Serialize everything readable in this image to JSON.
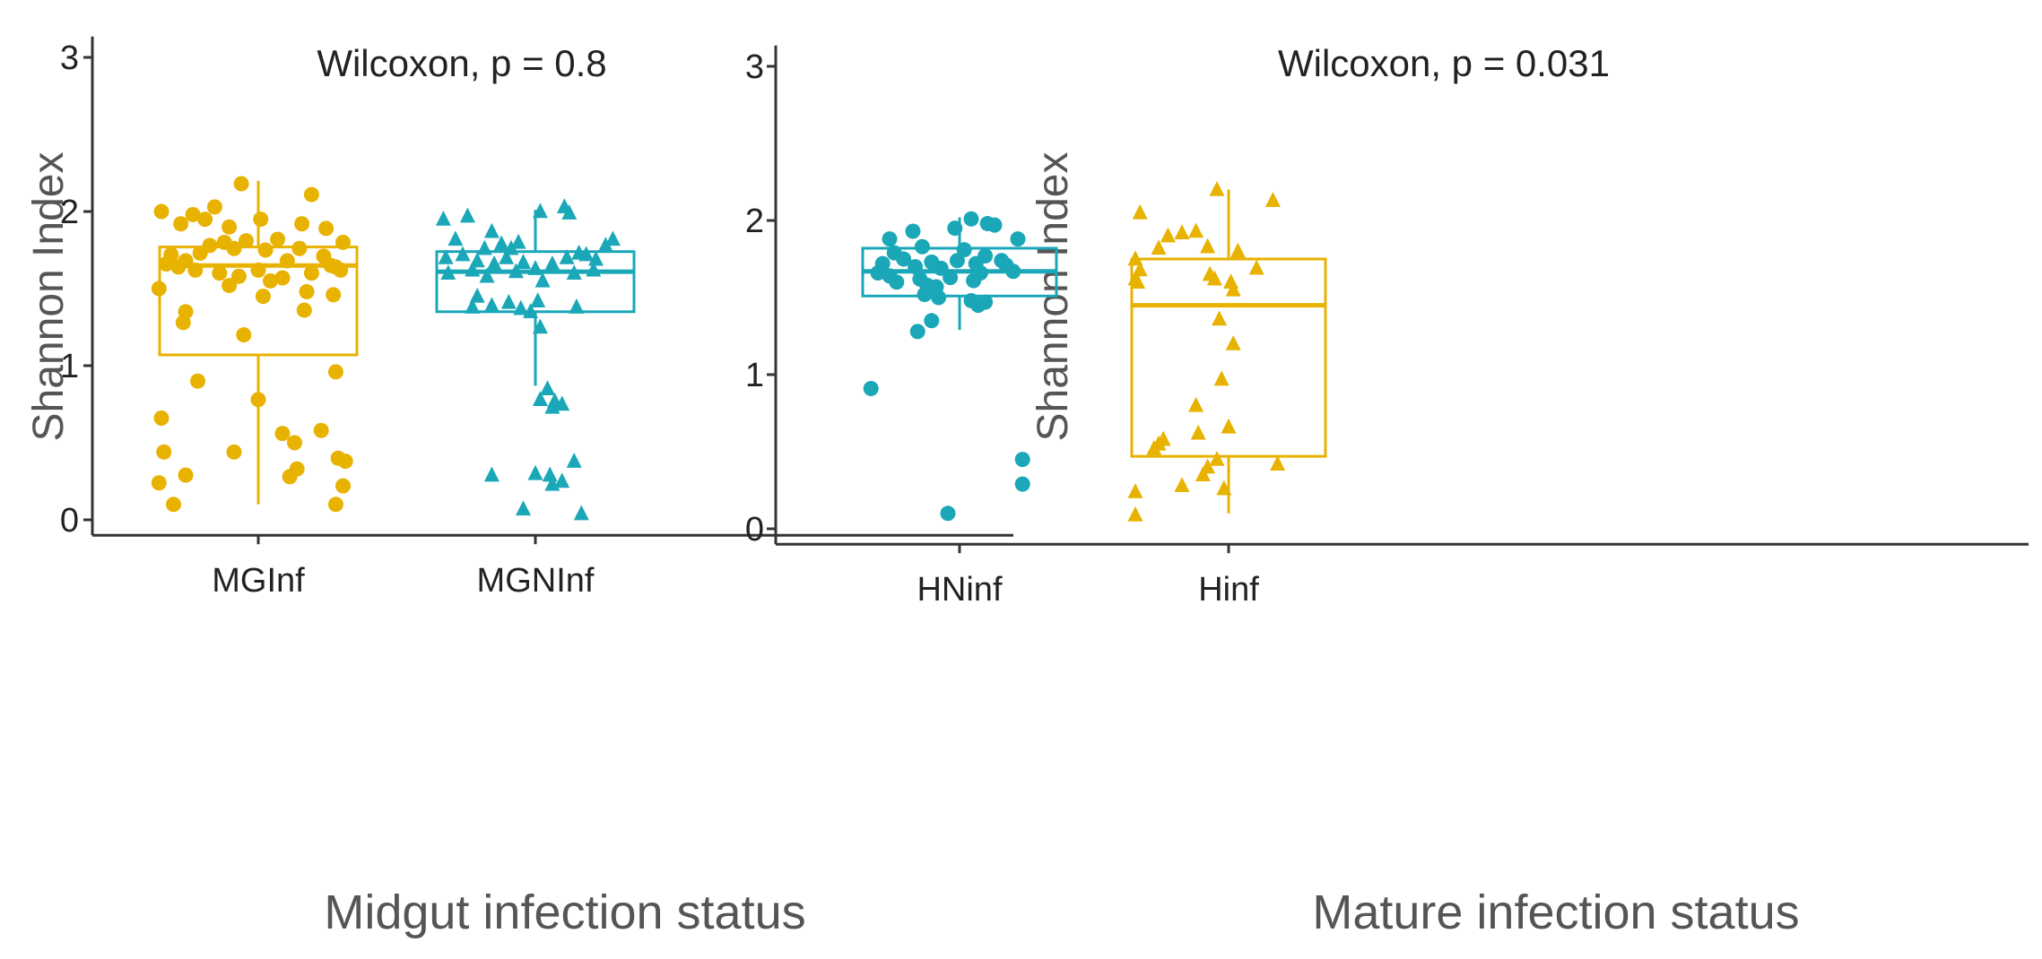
{
  "colors": {
    "gold": "#E8B200",
    "teal": "#1AA7B8",
    "axis": "#333333",
    "text": "#222222",
    "label": "#555555"
  },
  "chart_data": [
    {
      "type": "box",
      "title": "",
      "annotation": "Wilcoxon, p = 0.8",
      "xlabel": "Midgut infection status",
      "ylabel": "Shannon Index",
      "ylim": [
        -0.1,
        3.1
      ],
      "yticks": [
        "0",
        "1",
        "2",
        "3"
      ],
      "categories": [
        "MGInf",
        "MGNInf"
      ],
      "series": [
        {
          "name": "MGInf",
          "color_key": "gold",
          "marker": "circle",
          "box": {
            "min": 0.1,
            "q1": 1.07,
            "median": 1.65,
            "q3": 1.77,
            "max": 2.2
          },
          "points": [
            {
              "x": -0.4,
              "y": 2.0
            },
            {
              "x": -0.32,
              "y": 1.92
            },
            {
              "x": -0.27,
              "y": 1.98
            },
            {
              "x": -0.22,
              "y": 1.95
            },
            {
              "x": -0.18,
              "y": 2.03
            },
            {
              "x": -0.12,
              "y": 1.9
            },
            {
              "x": -0.07,
              "y": 2.18
            },
            {
              "x": 0.01,
              "y": 1.95
            },
            {
              "x": 0.18,
              "y": 1.92
            },
            {
              "x": 0.22,
              "y": 2.11
            },
            {
              "x": 0.28,
              "y": 1.89
            },
            {
              "x": 0.35,
              "y": 1.8
            },
            {
              "x": -0.36,
              "y": 1.72
            },
            {
              "x": -0.3,
              "y": 1.68
            },
            {
              "x": -0.24,
              "y": 1.73
            },
            {
              "x": -0.2,
              "y": 1.78
            },
            {
              "x": -0.14,
              "y": 1.8
            },
            {
              "x": -0.1,
              "y": 1.76
            },
            {
              "x": -0.05,
              "y": 1.81
            },
            {
              "x": 0.03,
              "y": 1.75
            },
            {
              "x": 0.08,
              "y": 1.82
            },
            {
              "x": 0.12,
              "y": 1.68
            },
            {
              "x": 0.17,
              "y": 1.76
            },
            {
              "x": 0.27,
              "y": 1.71
            },
            {
              "x": 0.3,
              "y": 1.65
            },
            {
              "x": 0.34,
              "y": 1.62
            },
            {
              "x": -0.38,
              "y": 1.66
            },
            {
              "x": -0.33,
              "y": 1.64
            },
            {
              "x": -0.26,
              "y": 1.62
            },
            {
              "x": -0.16,
              "y": 1.6
            },
            {
              "x": -0.08,
              "y": 1.58
            },
            {
              "x": 0.0,
              "y": 1.62
            },
            {
              "x": 0.05,
              "y": 1.55
            },
            {
              "x": 0.1,
              "y": 1.57
            },
            {
              "x": 0.22,
              "y": 1.6
            },
            {
              "x": 0.32,
              "y": 1.64
            },
            {
              "x": -0.41,
              "y": 1.5
            },
            {
              "x": -0.12,
              "y": 1.52
            },
            {
              "x": 0.02,
              "y": 1.45
            },
            {
              "x": 0.2,
              "y": 1.48
            },
            {
              "x": 0.31,
              "y": 1.46
            },
            {
              "x": -0.3,
              "y": 1.35
            },
            {
              "x": -0.31,
              "y": 1.28
            },
            {
              "x": 0.19,
              "y": 1.36
            },
            {
              "x": -0.06,
              "y": 1.2
            },
            {
              "x": -0.25,
              "y": 0.9
            },
            {
              "x": 0.32,
              "y": 0.96
            },
            {
              "x": 0.0,
              "y": 0.78
            },
            {
              "x": -0.4,
              "y": 0.66
            },
            {
              "x": 0.26,
              "y": 0.58
            },
            {
              "x": 0.1,
              "y": 0.56
            },
            {
              "x": 0.15,
              "y": 0.5
            },
            {
              "x": -0.39,
              "y": 0.44
            },
            {
              "x": -0.1,
              "y": 0.44
            },
            {
              "x": 0.33,
              "y": 0.4
            },
            {
              "x": 0.36,
              "y": 0.38
            },
            {
              "x": 0.16,
              "y": 0.33
            },
            {
              "x": -0.3,
              "y": 0.29
            },
            {
              "x": -0.41,
              "y": 0.24
            },
            {
              "x": 0.13,
              "y": 0.28
            },
            {
              "x": 0.35,
              "y": 0.22
            },
            {
              "x": -0.35,
              "y": 0.1
            },
            {
              "x": 0.32,
              "y": 0.1
            }
          ]
        },
        {
          "name": "MGNInf",
          "color_key": "teal",
          "marker": "triangle",
          "box": {
            "min": 0.87,
            "q1": 1.35,
            "median": 1.61,
            "q3": 1.74,
            "max": 2.01
          },
          "points": [
            {
              "x": -0.38,
              "y": 1.95
            },
            {
              "x": -0.28,
              "y": 1.97
            },
            {
              "x": -0.18,
              "y": 1.87
            },
            {
              "x": 0.02,
              "y": 2.0
            },
            {
              "x": 0.12,
              "y": 2.03
            },
            {
              "x": 0.14,
              "y": 1.99
            },
            {
              "x": -0.33,
              "y": 1.82
            },
            {
              "x": -0.21,
              "y": 1.76
            },
            {
              "x": -0.14,
              "y": 1.79
            },
            {
              "x": -0.1,
              "y": 1.76
            },
            {
              "x": -0.07,
              "y": 1.8
            },
            {
              "x": 0.18,
              "y": 1.73
            },
            {
              "x": 0.32,
              "y": 1.82
            },
            {
              "x": 0.29,
              "y": 1.78
            },
            {
              "x": -0.37,
              "y": 1.7
            },
            {
              "x": -0.3,
              "y": 1.72
            },
            {
              "x": -0.24,
              "y": 1.68
            },
            {
              "x": -0.17,
              "y": 1.66
            },
            {
              "x": -0.12,
              "y": 1.7
            },
            {
              "x": -0.05,
              "y": 1.67
            },
            {
              "x": 0.0,
              "y": 1.63
            },
            {
              "x": 0.07,
              "y": 1.66
            },
            {
              "x": 0.13,
              "y": 1.7
            },
            {
              "x": 0.21,
              "y": 1.72
            },
            {
              "x": 0.25,
              "y": 1.69
            },
            {
              "x": -0.36,
              "y": 1.6
            },
            {
              "x": -0.26,
              "y": 1.62
            },
            {
              "x": -0.2,
              "y": 1.58
            },
            {
              "x": -0.08,
              "y": 1.61
            },
            {
              "x": 0.03,
              "y": 1.55
            },
            {
              "x": 0.16,
              "y": 1.6
            },
            {
              "x": 0.24,
              "y": 1.62
            },
            {
              "x": -0.24,
              "y": 1.45
            },
            {
              "x": -0.18,
              "y": 1.39
            },
            {
              "x": -0.11,
              "y": 1.41
            },
            {
              "x": -0.06,
              "y": 1.37
            },
            {
              "x": -0.02,
              "y": 1.35
            },
            {
              "x": 0.01,
              "y": 1.42
            },
            {
              "x": 0.17,
              "y": 1.38
            },
            {
              "x": -0.26,
              "y": 1.38
            },
            {
              "x": 0.02,
              "y": 1.25
            },
            {
              "x": 0.05,
              "y": 0.85
            },
            {
              "x": 0.08,
              "y": 0.77
            },
            {
              "x": 0.11,
              "y": 0.75
            },
            {
              "x": 0.02,
              "y": 0.78
            },
            {
              "x": 0.07,
              "y": 0.73
            },
            {
              "x": 0.16,
              "y": 0.38
            },
            {
              "x": -0.18,
              "y": 0.29
            },
            {
              "x": 0.0,
              "y": 0.3
            },
            {
              "x": 0.06,
              "y": 0.29
            },
            {
              "x": 0.11,
              "y": 0.25
            },
            {
              "x": 0.07,
              "y": 0.23
            },
            {
              "x": -0.05,
              "y": 0.07
            },
            {
              "x": 0.19,
              "y": 0.04
            }
          ]
        }
      ]
    },
    {
      "type": "box",
      "title": "",
      "annotation": "Wilcoxon, p = 0.031",
      "xlabel": "Mature infection status",
      "ylabel": "Shannon Index",
      "ylim": [
        -0.1,
        3.1
      ],
      "yticks": [
        "0",
        "1",
        "2",
        "3"
      ],
      "categories": [
        "HNinf",
        "Hinf"
      ],
      "series": [
        {
          "name": "HNinf",
          "color_key": "teal",
          "marker": "circle",
          "box": {
            "min": 1.29,
            "q1": 1.51,
            "median": 1.67,
            "q3": 1.82,
            "max": 2.02
          },
          "points": [
            {
              "x": -0.3,
              "y": 1.88
            },
            {
              "x": -0.2,
              "y": 1.93
            },
            {
              "x": -0.02,
              "y": 1.95
            },
            {
              "x": 0.05,
              "y": 2.01
            },
            {
              "x": 0.12,
              "y": 1.98
            },
            {
              "x": 0.15,
              "y": 1.97
            },
            {
              "x": -0.28,
              "y": 1.79
            },
            {
              "x": -0.16,
              "y": 1.83
            },
            {
              "x": 0.02,
              "y": 1.81
            },
            {
              "x": 0.25,
              "y": 1.88
            },
            {
              "x": -0.33,
              "y": 1.72
            },
            {
              "x": -0.24,
              "y": 1.75
            },
            {
              "x": -0.19,
              "y": 1.7
            },
            {
              "x": -0.12,
              "y": 1.73
            },
            {
              "x": -0.08,
              "y": 1.69
            },
            {
              "x": -0.01,
              "y": 1.74
            },
            {
              "x": 0.07,
              "y": 1.72
            },
            {
              "x": 0.11,
              "y": 1.77
            },
            {
              "x": 0.18,
              "y": 1.74
            },
            {
              "x": 0.2,
              "y": 1.71
            },
            {
              "x": -0.35,
              "y": 1.66
            },
            {
              "x": -0.3,
              "y": 1.64
            },
            {
              "x": -0.27,
              "y": 1.6
            },
            {
              "x": -0.17,
              "y": 1.62
            },
            {
              "x": -0.14,
              "y": 1.58
            },
            {
              "x": -0.1,
              "y": 1.57
            },
            {
              "x": -0.04,
              "y": 1.63
            },
            {
              "x": 0.06,
              "y": 1.61
            },
            {
              "x": 0.09,
              "y": 1.66
            },
            {
              "x": 0.23,
              "y": 1.67
            },
            {
              "x": -0.15,
              "y": 1.52
            },
            {
              "x": -0.09,
              "y": 1.5
            },
            {
              "x": 0.05,
              "y": 1.48
            },
            {
              "x": 0.08,
              "y": 1.45
            },
            {
              "x": 0.11,
              "y": 1.47
            },
            {
              "x": -0.12,
              "y": 1.35
            },
            {
              "x": -0.18,
              "y": 1.28
            },
            {
              "x": -0.38,
              "y": 0.91
            },
            {
              "x": 0.27,
              "y": 0.45
            },
            {
              "x": 0.27,
              "y": 0.29
            },
            {
              "x": -0.05,
              "y": 0.1
            }
          ]
        },
        {
          "name": "Hinf",
          "color_key": "gold",
          "marker": "triangle",
          "box": {
            "min": 0.1,
            "q1": 0.47,
            "median": 1.45,
            "q3": 1.75,
            "max": 2.2
          },
          "points": [
            {
              "x": -0.38,
              "y": 2.05
            },
            {
              "x": -0.26,
              "y": 1.9
            },
            {
              "x": -0.2,
              "y": 1.92
            },
            {
              "x": -0.14,
              "y": 1.93
            },
            {
              "x": -0.05,
              "y": 2.2
            },
            {
              "x": 0.19,
              "y": 2.13
            },
            {
              "x": -0.3,
              "y": 1.82
            },
            {
              "x": -0.09,
              "y": 1.83
            },
            {
              "x": 0.04,
              "y": 1.8
            },
            {
              "x": -0.4,
              "y": 1.75
            },
            {
              "x": -0.38,
              "y": 1.68
            },
            {
              "x": -0.08,
              "y": 1.65
            },
            {
              "x": -0.06,
              "y": 1.62
            },
            {
              "x": 0.12,
              "y": 1.69
            },
            {
              "x": -0.39,
              "y": 1.6
            },
            {
              "x": -0.4,
              "y": 1.62
            },
            {
              "x": 0.01,
              "y": 1.6
            },
            {
              "x": 0.02,
              "y": 1.55
            },
            {
              "x": -0.04,
              "y": 1.36
            },
            {
              "x": 0.02,
              "y": 1.2
            },
            {
              "x": -0.03,
              "y": 0.97
            },
            {
              "x": -0.14,
              "y": 0.8
            },
            {
              "x": 0.0,
              "y": 0.66
            },
            {
              "x": -0.13,
              "y": 0.62
            },
            {
              "x": -0.28,
              "y": 0.58
            },
            {
              "x": -0.3,
              "y": 0.55
            },
            {
              "x": -0.32,
              "y": 0.52
            },
            {
              "x": -0.05,
              "y": 0.45
            },
            {
              "x": -0.09,
              "y": 0.4
            },
            {
              "x": 0.21,
              "y": 0.42
            },
            {
              "x": -0.11,
              "y": 0.35
            },
            {
              "x": -0.2,
              "y": 0.28
            },
            {
              "x": -0.02,
              "y": 0.26
            },
            {
              "x": -0.4,
              "y": 0.24
            },
            {
              "x": -0.4,
              "y": 0.09
            }
          ]
        }
      ]
    }
  ]
}
